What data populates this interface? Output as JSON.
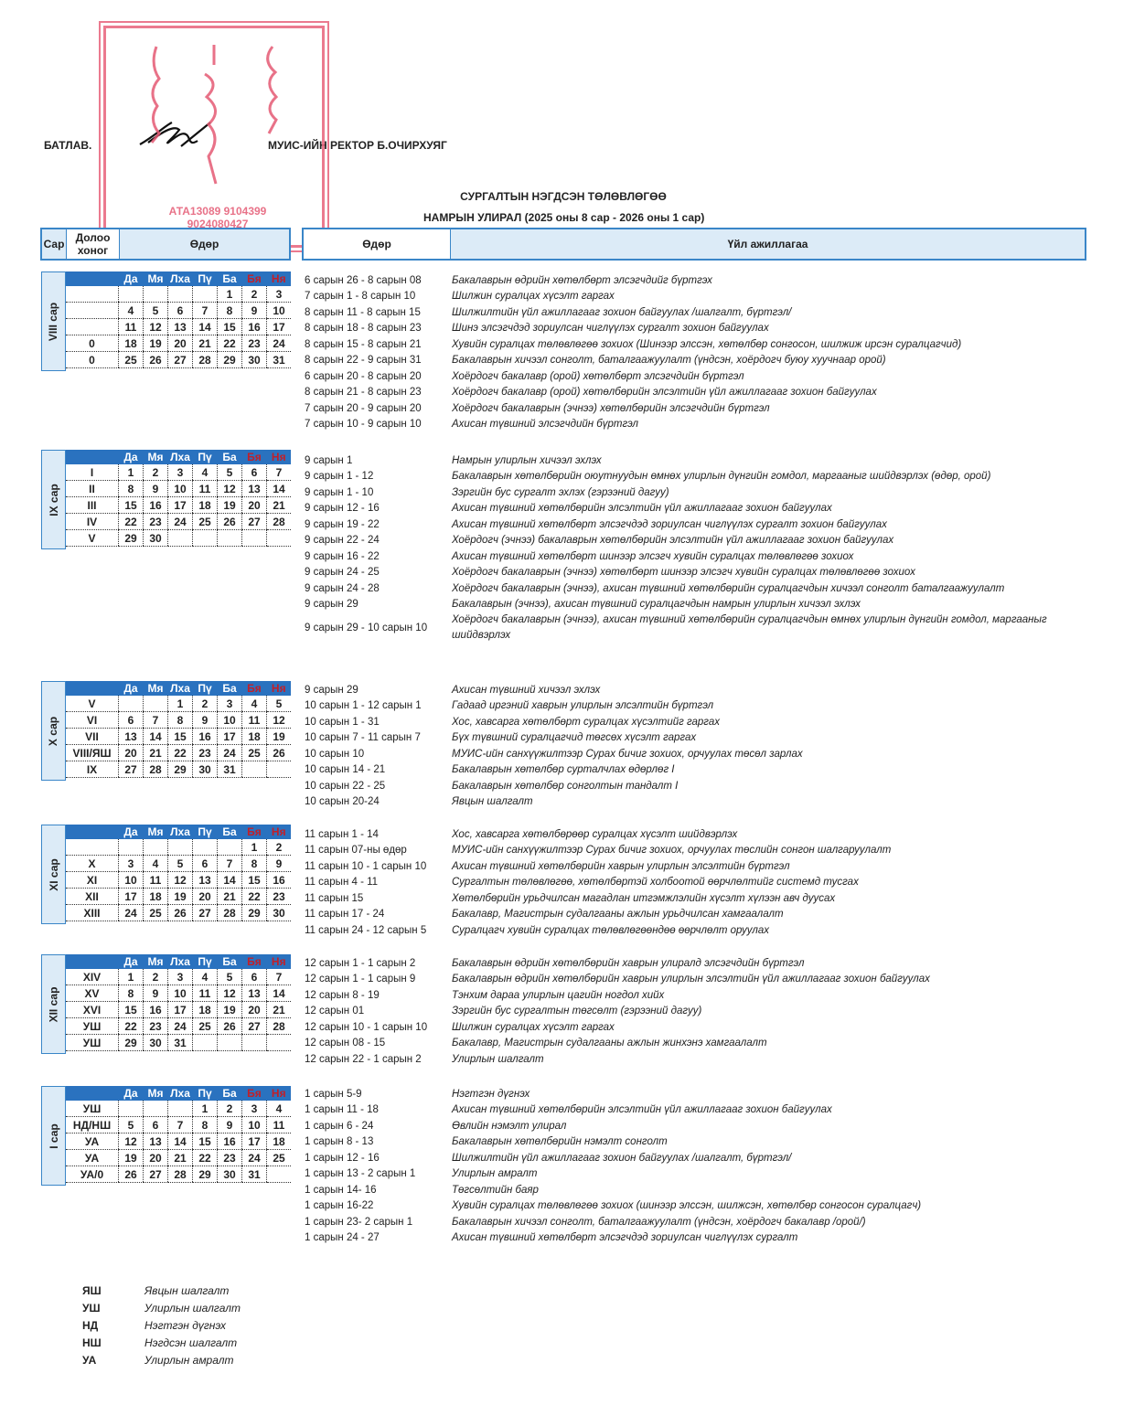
{
  "approval": {
    "label": "БАТЛАВ.",
    "signer": "МУИС-ИЙН РЕКТОР Б.ОЧИРХУЯГ"
  },
  "stamp": {
    "numbers_line1": "АТА13089   9104399",
    "numbers_line2": "9024080427",
    "color": "#e8637c"
  },
  "title": "СУРГАЛТЫН НЭГДСЭН ТӨЛӨВЛӨГӨӨ",
  "subtitle": "НАМРЫН УЛИРАЛ (2025 оны 8 сар - 2026 оны 1 сар)",
  "header_left": {
    "month": "Сар",
    "week": "Долоо хоног",
    "day": "Өдөр"
  },
  "header_right": {
    "date": "Өдөр",
    "activity": "Үйл ажиллагаа"
  },
  "weekdays": [
    "Да",
    "Мя",
    "Лха",
    "Пү",
    "Ба",
    "Бя",
    "Ня"
  ],
  "colors": {
    "header_blue": "#2a72bf",
    "weekend_red": "#c0202a",
    "light_blue": "#dcebf7"
  },
  "months": [
    {
      "label": "VIII сар",
      "weeks": [
        [
          "",
          [
            "",
            "",
            "",
            "",
            "1",
            "2",
            "3"
          ]
        ],
        [
          "",
          [
            "4",
            "5",
            "6",
            "7",
            "8",
            "9",
            "10"
          ]
        ],
        [
          "",
          [
            "11",
            "12",
            "13",
            "14",
            "15",
            "16",
            "17"
          ]
        ],
        [
          "0",
          [
            "18",
            "19",
            "20",
            "21",
            "22",
            "23",
            "24"
          ]
        ],
        [
          "0",
          [
            "25",
            "26",
            "27",
            "28",
            "29",
            "30",
            "31"
          ]
        ]
      ],
      "activities": [
        [
          "6 сарын 26 - 8 сарын 08",
          "Бакалаврын өдрийн хөтөлбөрт элсэгчдийг бүртгэх"
        ],
        [
          "7 сарын 1 - 8 сарын 10",
          "Шилжин суралцах хүсэлт гаргах"
        ],
        [
          "8 сарын 11 - 8 сарын 15",
          "Шилжилтийн үйл ажиллагааг зохион байгуулах /шалгалт, бүртгэл/"
        ],
        [
          "8 сарын 18 - 8 сарын 23",
          "Шинэ элсэгчдэд зориулсан чиглүүлэх сургалт зохион байгуулах"
        ],
        [
          "8 сарын 15 - 8 сарын 21",
          "Хувийн суралцах төлөвлөгөө зохиох (Шинээр элссэн, хөтөлбөр сонгосон, шилжиж ирсэн суралцагчид)"
        ],
        [
          "8 сарын 22 - 9 сарын 31",
          "Бакалаврын хичээл сонголт, баталгаажуулалт (үндсэн, хоёрдогч буюу хуучнаар орой)"
        ],
        [
          "6 сарын 20 - 8 сарын 20",
          "Хоёрдогч бакалавр (орой) хөтөлбөрт элсэгчдийн бүртгэл"
        ],
        [
          "8 сарын 21 - 8 сарын 23",
          "Хоёрдогч бакалавр (орой) хөтөлбөрийн элсэлтийн үйл ажиллагааг зохион байгуулах"
        ],
        [
          "7 сарын 20 - 9 сарын 20",
          "Хоёрдогч бакалаврын (эчнээ) хөтөлбөрийн элсэгчдийн бүртгэл"
        ],
        [
          "7 сарын 10 - 9 сарын 10",
          "Ахисан түвшний элсэгчдийн бүртгэл"
        ]
      ]
    },
    {
      "label": "IX сар",
      "weeks": [
        [
          "I",
          [
            "1",
            "2",
            "3",
            "4",
            "5",
            "6",
            "7"
          ]
        ],
        [
          "II",
          [
            "8",
            "9",
            "10",
            "11",
            "12",
            "13",
            "14"
          ]
        ],
        [
          "III",
          [
            "15",
            "16",
            "17",
            "18",
            "19",
            "20",
            "21"
          ]
        ],
        [
          "IV",
          [
            "22",
            "23",
            "24",
            "25",
            "26",
            "27",
            "28"
          ]
        ],
        [
          "V",
          [
            "29",
            "30",
            "",
            "",
            "",
            "",
            ""
          ]
        ]
      ],
      "activities": [
        [
          "9 сарын 1",
          "Намрын улирлын хичээл эхлэх"
        ],
        [
          "9 сарын 1 - 12",
          "Бакалаврын хөтөлбөрийн оюутнуудын өмнөх улирлын дүнгийн гомдол, маргааныг шийдвэрлэх (өдөр, орой)"
        ],
        [
          "9 сарын 1 - 10",
          "Зэргийн бус сургалт эхлэх (гэрээний дагуу)"
        ],
        [
          "9 сарын 12 - 16",
          "Ахисан түвшний хөтөлбөрийн элсэлтийн үйл ажиллагааг зохион байгуулах"
        ],
        [
          "9 сарын 19 - 22",
          "Ахисан түвшний хөтөлбөрт элсэгчдэд зориулсан чиглүүлэх сургалт зохион байгуулах"
        ],
        [
          "9 сарын 22 - 24",
          "Хоёрдогч (эчнээ) бакалаврын хөтөлбөрийн элсэлтийн үйл ажиллагааг зохион байгуулах"
        ],
        [
          "9 сарын 16 - 22",
          "Ахисан түвшний хөтөлбөрт шинээр элсэгч хувийн суралцах төлөвлөгөө зохиох"
        ],
        [
          "9 сарын 24 - 25",
          "Хоёрдогч бакалаврын (эчнээ) хөтөлбөрт шинээр элсэгч хувийн суралцах төлөвлөгөө зохиох"
        ],
        [
          "9 сарын 24 - 28",
          "Хоёрдогч бакалаврын (эчнээ),  ахисан түвшний хөтөлбөрийн суралцагчдын хичээл сонголт баталгаажуулалт"
        ],
        [
          "9 сарын 29",
          "Бакалаврын (эчнээ), ахисан түвшний суралцагчдын намрын улирлын хичээл эхлэх"
        ],
        [
          "9 сарын 29 - 10 сарын 10",
          "Хоёрдогч бакалаврын (эчнээ), ахисан түвшний хөтөлбөрийн суралцагчдын өмнөх улирлын дүнгийн гомдол, маргааныг шийдвэрлэх"
        ]
      ]
    },
    {
      "label": "X сар",
      "weeks": [
        [
          "V",
          [
            "",
            "",
            "1",
            "2",
            "3",
            "4",
            "5"
          ]
        ],
        [
          "VI",
          [
            "6",
            "7",
            "8",
            "9",
            "10",
            "11",
            "12"
          ]
        ],
        [
          "VII",
          [
            "13",
            "14",
            "15",
            "16",
            "17",
            "18",
            "19"
          ]
        ],
        [
          "VIII/ЯШ",
          [
            "20",
            "21",
            "22",
            "23",
            "24",
            "25",
            "26"
          ]
        ],
        [
          "IX",
          [
            "27",
            "28",
            "29",
            "30",
            "31",
            "",
            ""
          ]
        ]
      ],
      "activities": [
        [
          "9 сарын 29",
          "Ахисан түвшний хичээл эхлэх"
        ],
        [
          "10 сарын 1 - 12 сарын 1",
          "Гадаад иргэний хаврын улирлын элсэлтийн бүртгэл"
        ],
        [
          "10 сарын 1 - 31",
          "Хос, хавсарга хөтөлбөрт суралцах хүсэлтийг гаргах"
        ],
        [
          "10 сарын 7 - 11 сарын  7",
          "Бүх түвшний суралцагчид төгсөх хүсэлт гаргах"
        ],
        [
          "10 сарын 10",
          "МУИС-ийн санхүүжилтээр Сурах бичиг зохиох, орчуулах төсөл зарлах"
        ],
        [
          "10 сарын 14 - 21",
          "Бакалаврын хөтөлбөр сурталчлах өдөрлөг I"
        ],
        [
          "10 сарын 22 - 25",
          "Бакалаврын хөтөлбөр сонголтын тандалт I"
        ],
        [
          "10 сарын 20-24",
          "Явцын шалгалт"
        ]
      ]
    },
    {
      "label": "XI сар",
      "weeks": [
        [
          "",
          [
            "",
            "",
            "",
            "",
            "",
            "1",
            "2"
          ]
        ],
        [
          "X",
          [
            "3",
            "4",
            "5",
            "6",
            "7",
            "8",
            "9"
          ]
        ],
        [
          "XI",
          [
            "10",
            "11",
            "12",
            "13",
            "14",
            "15",
            "16"
          ]
        ],
        [
          "XII",
          [
            "17",
            "18",
            "19",
            "20",
            "21",
            "22",
            "23"
          ]
        ],
        [
          "XIII",
          [
            "24",
            "25",
            "26",
            "27",
            "28",
            "29",
            "30"
          ]
        ]
      ],
      "activities": [
        [
          "11 сарын 1 - 14",
          "Хос, хавсарга хөтөлбөрөөр суралцах хүсэлт шийдвэрлэх"
        ],
        [
          "11 сарын 07-ны өдөр",
          "МУИС-ийн санхүүжилтээр Сурах бичиг зохиох, орчуулах төслийн сонгон шалгаруулалт"
        ],
        [
          "11 сарын 10 - 1 сарын 10",
          "Ахисан түвшний хөтөлбөрийн хаврын улирлын элсэлтийн бүртгэл"
        ],
        [
          "11 сарын 4 - 11",
          "Сургалтын төлөвлөгөө, хөтөлбөртэй холбоотой өөрчлөлтийг системд тусгах"
        ],
        [
          "11 сарын 15",
          "Хөтөлбөрийн урьдчилсан магадлан итгэмжлэлийн хүсэлт хүлээн авч дуусах"
        ],
        [
          "11 сарын 17 - 24",
          "Бакалавр, Магистрын судалгааны ажлын урьдчилсан  хамгаалалт"
        ],
        [
          "11 сарын 24 - 12 сарын 5",
          "Суралцагч хувийн суралцах төлөвлөгөөндөө өөрчлөлт оруулах"
        ]
      ]
    },
    {
      "label": "XII сар",
      "weeks": [
        [
          "XIV",
          [
            "1",
            "2",
            "3",
            "4",
            "5",
            "6",
            "7"
          ]
        ],
        [
          "XV",
          [
            "8",
            "9",
            "10",
            "11",
            "12",
            "13",
            "14"
          ]
        ],
        [
          "XVI",
          [
            "15",
            "16",
            "17",
            "18",
            "19",
            "20",
            "21"
          ]
        ],
        [
          "УШ",
          [
            "22",
            "23",
            "24",
            "25",
            "26",
            "27",
            "28"
          ]
        ],
        [
          "УШ",
          [
            "29",
            "30",
            "31",
            "",
            "",
            "",
            ""
          ]
        ]
      ],
      "activities": [
        [
          "12 сарын 1 - 1 сарын 2",
          "Бакалаврын өдрийн хөтөлбөрийн хаврын улиралд элсэгчдийн бүртгэл"
        ],
        [
          "12 сарын 1 - 1 сарын 9",
          "Бакалаврын өдрийн хөтөлбөрийн хаврын улирлын элсэлтийн үйл ажиллагааг зохион байгуулах"
        ],
        [
          "12 сарын 8 - 19",
          "Тэнхим дараа улирлын цагийн ногдол хийх"
        ],
        [
          "12 сарын 01",
          "Зэргийн бус сургалтын төгсөлт (гэрээний дагуу)"
        ],
        [
          "12 сарын 10 - 1 сарын 10",
          "Шилжин суралцах хүсэлт гаргах"
        ],
        [
          "12 сарын 08 - 15",
          "Бакалавр, Магистрын судалгааны ажлын жинхэнэ хамгаалалт"
        ],
        [
          "12 сарын 22 - 1 сарын 2",
          "Улирлын шалгалт"
        ]
      ]
    },
    {
      "label": "I сар",
      "weeks": [
        [
          "УШ",
          [
            "",
            "",
            "",
            "1",
            "2",
            "3",
            "4"
          ]
        ],
        [
          "НД/НШ",
          [
            "5",
            "6",
            "7",
            "8",
            "9",
            "10",
            "11"
          ]
        ],
        [
          "УА",
          [
            "12",
            "13",
            "14",
            "15",
            "16",
            "17",
            "18"
          ]
        ],
        [
          "УА",
          [
            "19",
            "20",
            "21",
            "22",
            "23",
            "24",
            "25"
          ]
        ],
        [
          "УА/0",
          [
            "26",
            "27",
            "28",
            "29",
            "30",
            "31",
            ""
          ]
        ]
      ],
      "activities": [
        [
          "1 сарын 5-9",
          "Нэгтгэн дүгнэх"
        ],
        [
          "1 сарын 11 - 18",
          "Ахисан түвшний хөтөлбөрийн элсэлтийн үйл ажиллагааг зохион байгуулах"
        ],
        [
          "1 сарын 6 - 24",
          "Өвлийн нэмэлт улирал"
        ],
        [
          "1 сарын 8 - 13",
          "Бакалаврын хөтөлбөрийн нэмэлт сонголт"
        ],
        [
          "1 сарын 12 - 16",
          "Шилжилтийн үйл ажиллагааг зохион байгуулах /шалгалт, бүртгэл/"
        ],
        [
          "1 сарын 13 - 2 сарын 1",
          "Улирлын амралт"
        ],
        [
          "1 сарын 14- 16",
          "Төгсөлтийн баяр"
        ],
        [
          "1 сарын 16-22",
          "Хувийн суралцах төлөвлөгөө зохиох (шинээр элссэн, шилжсэн, хөтөлбөр сонгосон суралцагч)"
        ],
        [
          "1 сарын 23- 2 сарын 1",
          "Бакалаврын хичээл сонголт, баталгаажуулалт (үндсэн, хоёрдогч бакалавр /орой/)"
        ],
        [
          "1 сарын 24 - 27",
          "Ахисан түвшний хөтөлбөрт элсэгчдэд зориулсан чиглүүлэх сургалт"
        ]
      ]
    }
  ],
  "legend": [
    {
      "abbr": "ЯШ",
      "desc": "Явцын шалгалт"
    },
    {
      "abbr": "УШ",
      "desc": "Улирлын шалгалт"
    },
    {
      "abbr": "НД",
      "desc": "Нэгтгэн дүгнэх"
    },
    {
      "abbr": "НШ",
      "desc": "Нэгдсэн шалгалт"
    },
    {
      "abbr": "УА",
      "desc": "Улирлын амралт"
    }
  ]
}
